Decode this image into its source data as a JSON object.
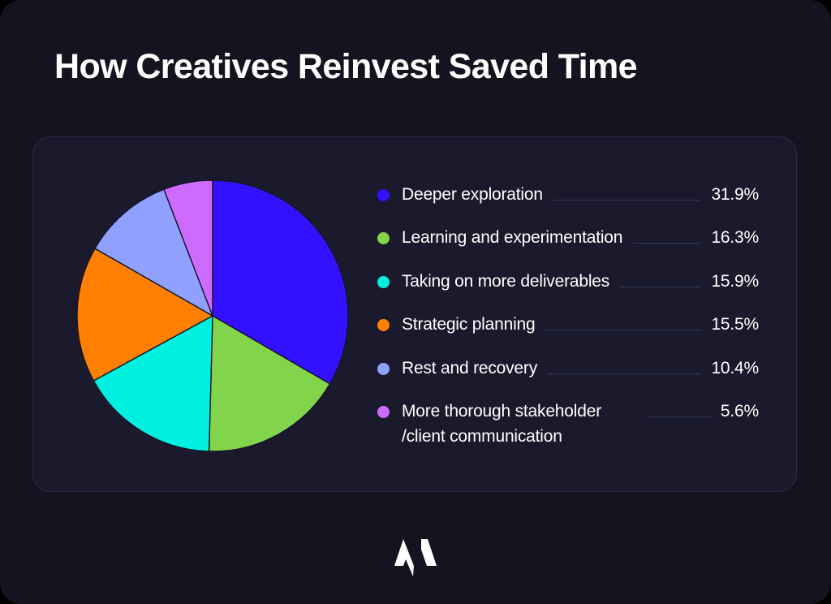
{
  "title": "How Creatives Reinvest Saved Time",
  "logo": {
    "icon": "brand-m-logo-icon",
    "color": "#ffffff"
  },
  "colors": {
    "frame_bg": "#13141f",
    "card_bg": "#1a1a2c",
    "card_border": "#2c2d48",
    "slice_stroke": "#14142a"
  },
  "legend": [
    {
      "label": "Deeper exploration",
      "value": "31.9%",
      "color": "#3310ff"
    },
    {
      "label": "Learning and experimentation",
      "value": "16.3%",
      "color": "#82d54a"
    },
    {
      "label": "Taking on more deliverables",
      "value": "15.9%",
      "color": "#00f0e0"
    },
    {
      "label": "Strategic planning",
      "value": "15.5%",
      "color": "#ff8000"
    },
    {
      "label": "Rest and recovery",
      "value": "10.4%",
      "color": "#8fa0ff"
    },
    {
      "label": "More thorough stakeholder /client communication",
      "value": "5.6%",
      "color": "#ce6bff"
    }
  ],
  "chart_data": {
    "type": "pie",
    "title": "How Creatives Reinvest Saved Time",
    "categories": [
      "Deeper exploration",
      "Learning and experimentation",
      "Taking on more deliverables",
      "Strategic planning",
      "Rest and recovery",
      "More thorough stakeholder /client communication"
    ],
    "values": [
      31.9,
      16.3,
      15.9,
      15.5,
      10.4,
      5.6
    ],
    "unit": "%",
    "colors": [
      "#3310ff",
      "#82d54a",
      "#00f0e0",
      "#ff8000",
      "#8fa0ff",
      "#ce6bff"
    ],
    "start_angle": "12 o'clock",
    "direction": "clockwise",
    "legend_position": "right",
    "xlabel": "",
    "ylabel": ""
  }
}
